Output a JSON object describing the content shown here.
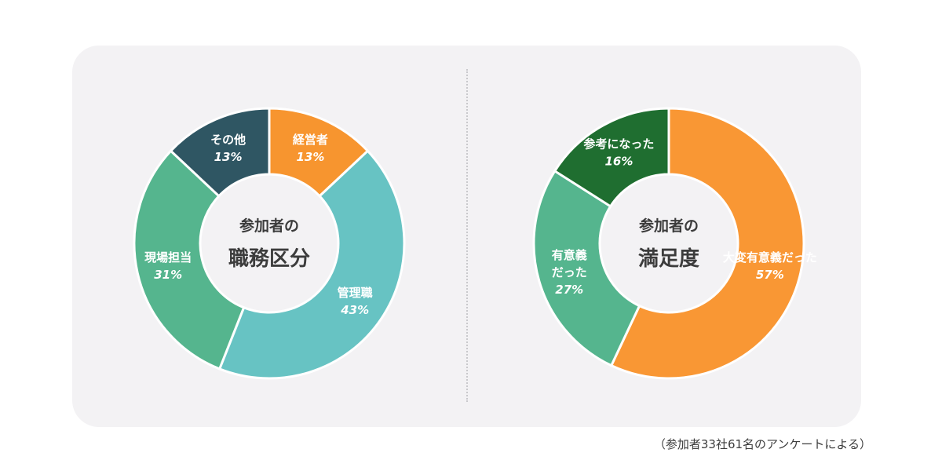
{
  "chart_data": [
    {
      "type": "pie",
      "center_title": [
        "参加者の",
        "職務区分"
      ],
      "slices": [
        {
          "label": [
            "経営者"
          ],
          "value": 13,
          "value_label": "13%",
          "color": "#f7952f",
          "italic": false
        },
        {
          "label": [
            "管理職"
          ],
          "value": 43,
          "value_label": "43%",
          "color": "#67c3c3",
          "italic": true
        },
        {
          "label": [
            "現場担当"
          ],
          "value": 31,
          "value_label": "31%",
          "color": "#55b58e",
          "italic": true
        },
        {
          "label": [
            "その他"
          ],
          "value": 13,
          "value_label": "13%",
          "color": "#2f5663",
          "italic": true
        }
      ]
    },
    {
      "type": "pie",
      "center_title": [
        "参加者の",
        "満足度"
      ],
      "slices": [
        {
          "label": [
            "大変有意義だった"
          ],
          "value": 57,
          "value_label": "57%",
          "color": "#f99734",
          "italic": true
        },
        {
          "label": [
            "有意義",
            "だった"
          ],
          "value": 27,
          "value_label": "27%",
          "color": "#55b58e",
          "italic": true
        },
        {
          "label": [
            "参考になった"
          ],
          "value": 16,
          "value_label": "16%",
          "color": "#1f6e30",
          "italic": false
        }
      ]
    }
  ],
  "footnote": "（参加者33社61名のアンケートによる）"
}
